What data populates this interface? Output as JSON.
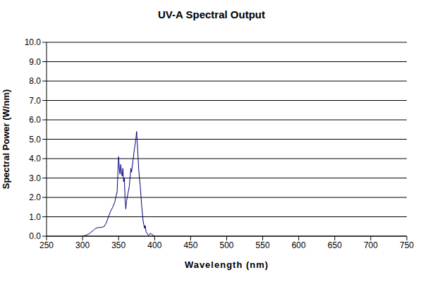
{
  "chart_data": {
    "type": "line",
    "title": "UV-A Spectral Output",
    "x_label": "Wavelength (nm)",
    "y_label": "Spectral Power (W/nm)",
    "x": [
      300,
      305,
      310,
      315,
      318,
      322,
      326,
      330,
      333,
      336,
      339,
      342,
      345,
      348,
      350,
      351,
      352,
      353,
      354,
      355,
      356,
      357,
      358,
      359,
      360,
      361,
      363,
      365,
      367,
      368,
      370,
      372,
      374,
      375,
      376,
      378,
      380,
      382,
      384,
      386,
      387,
      388,
      390,
      392,
      394,
      396,
      398,
      400
    ],
    "values": [
      0,
      0.05,
      0.15,
      0.3,
      0.4,
      0.45,
      0.45,
      0.5,
      0.7,
      1.0,
      1.3,
      1.5,
      1.8,
      2.3,
      4.1,
      3.5,
      3.2,
      3.7,
      3.3,
      3.1,
      3.5,
      2.8,
      3.0,
      1.9,
      1.4,
      1.8,
      2.2,
      2.6,
      3.5,
      3.3,
      3.9,
      4.5,
      5.0,
      5.4,
      4.8,
      3.4,
      2.6,
      1.6,
      0.8,
      0.4,
      0.55,
      0.25,
      0.1,
      0.05,
      0.15,
      0.1,
      0.05,
      0
    ],
    "color": "#000080",
    "xlim": [
      250,
      750
    ],
    "xticks": [
      250,
      300,
      350,
      400,
      450,
      500,
      550,
      600,
      650,
      700,
      750
    ],
    "ylim": [
      0,
      10
    ],
    "yticks": [
      {
        "value": 0,
        "label": "0.0"
      },
      {
        "value": 1,
        "label": "1.0"
      },
      {
        "value": 2,
        "label": "2.0"
      },
      {
        "value": 3,
        "label": "3.0"
      },
      {
        "value": 4,
        "label": "4.0"
      },
      {
        "value": 5,
        "label": "5.0"
      },
      {
        "value": 6,
        "label": "6.0"
      },
      {
        "value": 7,
        "label": "7.0"
      },
      {
        "value": 8,
        "label": "8.0"
      },
      {
        "value": 9,
        "label": "9.0"
      },
      {
        "value": 10,
        "label": "10.0"
      }
    ],
    "grid": true
  }
}
